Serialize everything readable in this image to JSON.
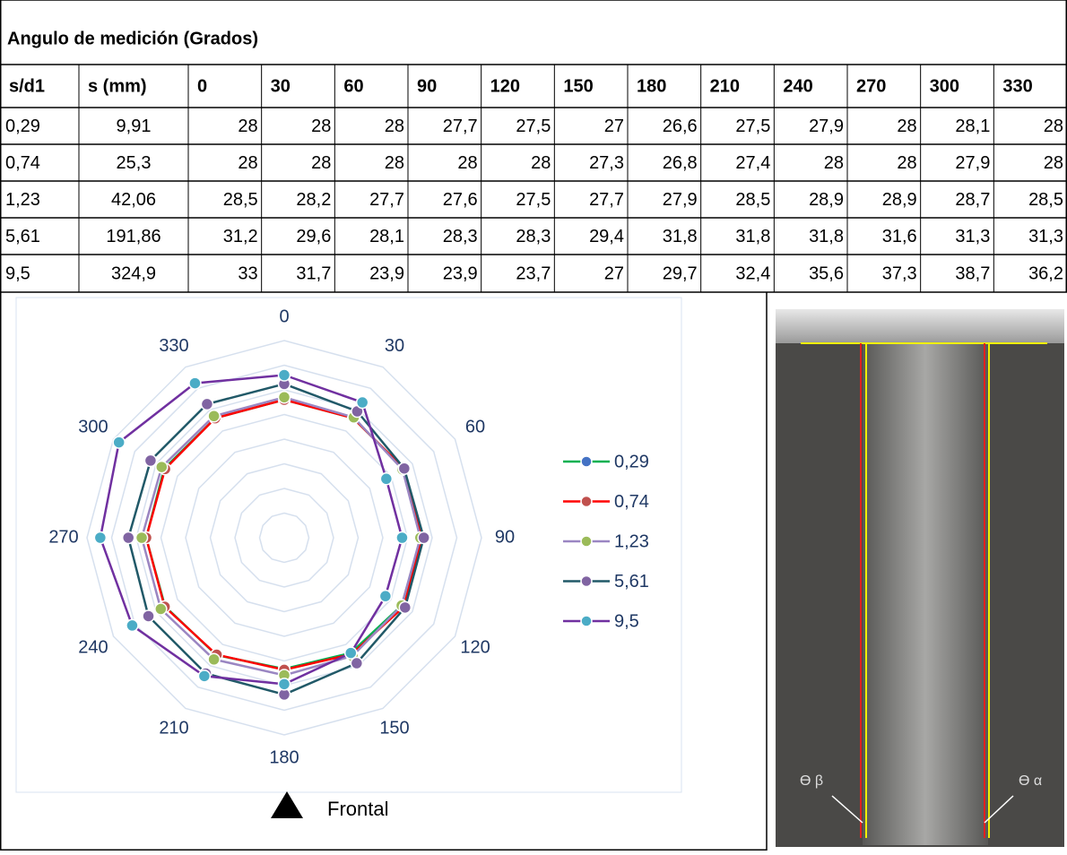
{
  "table": {
    "title": "Angulo de medición (Grados)",
    "header": [
      "s/d1",
      "s (mm)",
      "0",
      "30",
      "60",
      "90",
      "120",
      "150",
      "180",
      "210",
      "240",
      "270",
      "300",
      "330"
    ],
    "rows": [
      [
        "0,29",
        "9,91",
        "28",
        "28",
        "28",
        "27,7",
        "27,5",
        "27",
        "26,6",
        "27,5",
        "27,9",
        "28",
        "28,1",
        "28"
      ],
      [
        "0,74",
        "25,3",
        "28",
        "28",
        "28",
        "28",
        "28",
        "27,3",
        "26,8",
        "27,4",
        "28",
        "28",
        "27,9",
        "28"
      ],
      [
        "1,23",
        "42,06",
        "28,5",
        "28,2",
        "27,7",
        "27,6",
        "27,5",
        "27,7",
        "27,9",
        "28,5",
        "28,9",
        "28,9",
        "28,7",
        "28,5"
      ],
      [
        "5,61",
        "191,86",
        "31,2",
        "29,6",
        "28,1",
        "28,3",
        "28,3",
        "29,4",
        "31,8",
        "31,8",
        "31,8",
        "31,6",
        "31,3",
        "31,3"
      ],
      [
        "9,5",
        "324,9",
        "33",
        "31,7",
        "23,9",
        "23,9",
        "23,7",
        "27",
        "29,7",
        "32,4",
        "35,6",
        "37,3",
        "38,7",
        "36,2"
      ]
    ]
  },
  "chart_data": {
    "type": "radar",
    "categories": [
      "0",
      "30",
      "60",
      "90",
      "120",
      "150",
      "180",
      "210",
      "240",
      "270",
      "300",
      "330"
    ],
    "ylim": [
      0,
      40
    ],
    "yticks": [
      0,
      5,
      10,
      15,
      20,
      25,
      30,
      35,
      40
    ],
    "grid": true,
    "legend": "right",
    "annotation": "Frontal",
    "series": [
      {
        "name": "0,29",
        "color": "#00b050",
        "marker_color": "#4472c4",
        "values": [
          28,
          28,
          28,
          27.7,
          27.5,
          27,
          26.6,
          27.5,
          27.9,
          28,
          28.1,
          28
        ]
      },
      {
        "name": "0,74",
        "color": "#ff0000",
        "marker_color": "#c0504d",
        "values": [
          28,
          28,
          28,
          28,
          28,
          27.3,
          26.8,
          27.4,
          28,
          28,
          27.9,
          28
        ]
      },
      {
        "name": "1,23",
        "color": "#9a86c2",
        "marker_color": "#9bbb59",
        "values": [
          28.5,
          28.2,
          27.7,
          27.6,
          27.5,
          27.7,
          27.9,
          28.5,
          28.9,
          28.9,
          28.7,
          28.5
        ]
      },
      {
        "name": "5,61",
        "color": "#215968",
        "marker_color": "#8064a2",
        "values": [
          31.2,
          29.6,
          28.1,
          28.3,
          28.3,
          29.4,
          31.8,
          31.8,
          31.8,
          31.6,
          31.3,
          31.3
        ]
      },
      {
        "name": "9,5",
        "color": "#7030a0",
        "marker_color": "#4bacc6",
        "values": [
          33,
          31.7,
          23.9,
          23.9,
          23.7,
          27,
          29.7,
          32.4,
          35.6,
          37.3,
          38.7,
          36.2
        ]
      }
    ]
  },
  "photo": {
    "labels": [
      "ϴ β",
      "ϴ α"
    ]
  }
}
